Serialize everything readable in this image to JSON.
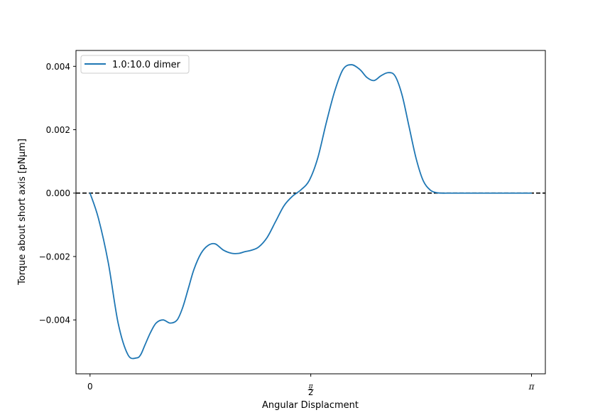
{
  "chart_data": {
    "type": "line",
    "title": "",
    "xlabel": "Angular Displacment",
    "ylabel": "Torque about short axis [pNμm]",
    "xlim": [
      -0.1,
      3.24
    ],
    "ylim": [
      -0.0057,
      0.0045
    ],
    "grid": false,
    "legend_position": "top-left",
    "x_ticks": [
      {
        "value": 0,
        "label": "0"
      },
      {
        "value": 1.5707963,
        "label": "π/2",
        "numerator": "π",
        "denominator": "2"
      },
      {
        "value": 3.1415927,
        "label": "π"
      }
    ],
    "y_ticks": [
      {
        "value": -0.004,
        "label": "−0.004"
      },
      {
        "value": -0.002,
        "label": "−0.002"
      },
      {
        "value": 0.0,
        "label": "0.000"
      },
      {
        "value": 0.002,
        "label": "0.002"
      },
      {
        "value": 0.004,
        "label": "0.004"
      }
    ],
    "reference_line": {
      "y": 0.0,
      "style": "dashed",
      "color": "#000000"
    },
    "series": [
      {
        "name": "1.0:10.0 dimer",
        "color": "#1f77b4",
        "x": [
          0.0,
          0.06,
          0.13,
          0.2,
          0.27,
          0.33,
          0.36,
          0.39,
          0.43,
          0.47,
          0.52,
          0.57,
          0.62,
          0.66,
          0.7,
          0.74,
          0.79,
          0.84,
          0.89,
          0.95,
          1.01,
          1.06,
          1.1,
          1.15,
          1.2,
          1.26,
          1.32,
          1.38,
          1.44,
          1.5,
          1.56,
          1.62,
          1.68,
          1.74,
          1.8,
          1.86,
          1.92,
          1.97,
          2.02,
          2.07,
          2.12,
          2.17,
          2.22,
          2.27,
          2.32,
          2.37,
          2.42,
          2.46,
          2.5,
          2.55,
          2.6,
          2.65,
          2.7,
          2.76,
          2.82,
          2.86,
          2.9,
          2.94,
          2.98,
          3.02,
          3.06,
          3.1,
          3.14
        ],
        "y": [
          0.0,
          -0.0008,
          -0.0022,
          -0.0041,
          -0.0051,
          -0.0052,
          -0.0051,
          -0.0048,
          -0.0044,
          -0.0041,
          -0.004,
          -0.0041,
          -0.004,
          -0.0036,
          -0.003,
          -0.0024,
          -0.0019,
          -0.00165,
          -0.0016,
          -0.0018,
          -0.0019,
          -0.0019,
          -0.00185,
          -0.0018,
          -0.0017,
          -0.0014,
          -0.0009,
          -0.0004,
          -0.0001,
          0.0001,
          0.0004,
          0.0011,
          0.0022,
          0.0032,
          0.0039,
          0.00405,
          0.0039,
          0.00365,
          0.00355,
          0.0037,
          0.0038,
          0.0037,
          0.0031,
          0.0021,
          0.0011,
          0.0004,
          0.0001,
          2e-05,
          0.0,
          0.0,
          0.0,
          0.0,
          0.0,
          0.0,
          0.0,
          0.0,
          0.0,
          0.0,
          0.0,
          0.0,
          0.0,
          0.0,
          0.0
        ]
      }
    ]
  }
}
